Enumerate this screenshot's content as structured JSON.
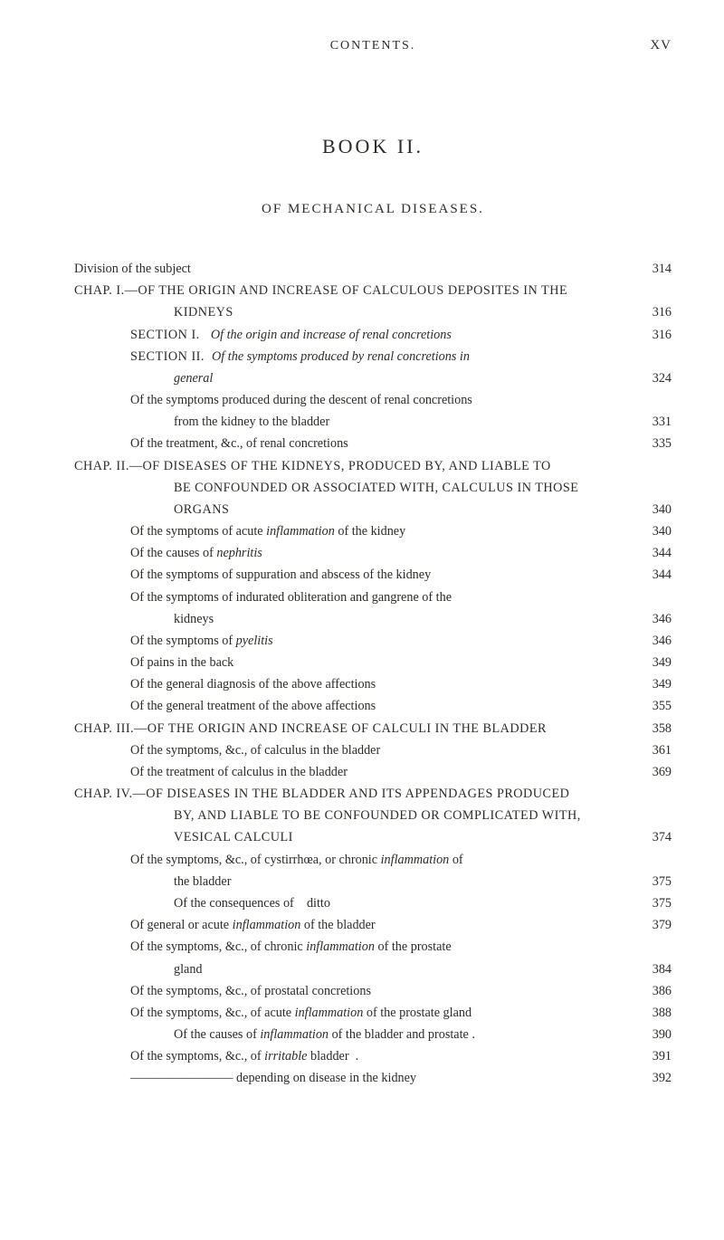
{
  "page": {
    "running_head": {
      "left": "",
      "center": "CONTENTS.",
      "right": "XV"
    },
    "book_title": "BOOK  II.",
    "subhead": "OF  MECHANICAL  DISEASES.",
    "page_font": {
      "family": "Times New Roman",
      "base_size_pt": 14.2,
      "color": "#2b2b28"
    },
    "background_color": "#ffffff"
  },
  "toc": {
    "items": [
      {
        "label_before": "Division of the subject",
        "label_after": "",
        "page": "314",
        "indent": 0
      },
      {
        "label_before": "CHAP. I.—OF THE ORIGIN AND INCREASE OF CALCULOUS DEPOSITES IN THE",
        "page": "",
        "indent": 0,
        "smallcaps": true,
        "hang": true
      },
      {
        "label_before": "KIDNEYS",
        "page": "316",
        "indent": 2,
        "smallcaps": true
      },
      {
        "label_before": "SECTION I.   ",
        "label_italic": "Of the origin and increase of renal concretions",
        "page": "316",
        "indent": 1,
        "smallcaps": true
      },
      {
        "label_before": "SECTION II.  ",
        "label_italic": "Of the symptoms produced by renal concretions in",
        "page": "",
        "indent": 1,
        "smallcaps": true
      },
      {
        "label_italic": "general",
        "page": "324",
        "indent": 2
      },
      {
        "label_before": "Of the symptoms produced during the descent of renal concretions",
        "page": "",
        "indent": 1
      },
      {
        "label_before": "from the kidney to the bladder",
        "page": "331",
        "indent": 2
      },
      {
        "label_before": "Of the treatment, &c., of renal concretions",
        "page": "335",
        "indent": 1
      },
      {
        "label_before": "CHAP. II.—OF DISEASES OF THE KIDNEYS, PRODUCED BY, AND LIABLE TO",
        "page": "",
        "indent": 0,
        "smallcaps": true,
        "hang": true
      },
      {
        "label_before": "BE CONFOUNDED OR ASSOCIATED WITH, CALCULUS IN THOSE",
        "page": "",
        "indent": 2,
        "smallcaps": true
      },
      {
        "label_before": "ORGANS",
        "page": "340",
        "indent": 2,
        "smallcaps": true
      },
      {
        "label_before": "Of the symptoms of acute ",
        "label_italic": "inflammation",
        "label_after": " of the kidney",
        "page": "340",
        "indent": 1
      },
      {
        "label_before": "Of the causes of ",
        "label_italic": "nephritis",
        "page": "344",
        "indent": 1
      },
      {
        "label_before": "Of the symptoms of suppuration and abscess of the kidney",
        "page": "344",
        "indent": 1
      },
      {
        "label_before": "Of the symptoms of indurated obliteration and gangrene of the",
        "page": "",
        "indent": 1
      },
      {
        "label_before": "kidneys",
        "page": "346",
        "indent": 2
      },
      {
        "label_before": "Of the symptoms of ",
        "label_italic": "pyelitis",
        "page": "346",
        "indent": 1
      },
      {
        "label_before": "Of pains in the back",
        "page": "349",
        "indent": 1
      },
      {
        "label_before": "Of the general diagnosis of the above affections",
        "page": "349",
        "indent": 1
      },
      {
        "label_before": "Of the general treatment of the above affections",
        "page": "355",
        "indent": 1
      },
      {
        "label_before": "CHAP. III.—OF THE ORIGIN AND INCREASE OF CALCULI IN THE BLADDER",
        "page": "358",
        "indent": 0,
        "smallcaps": true,
        "hang": true
      },
      {
        "label_before": "Of the symptoms, &c., of calculus in the bladder",
        "page": "361",
        "indent": 1
      },
      {
        "label_before": "Of the treatment of calculus in the bladder",
        "page": "369",
        "indent": 1
      },
      {
        "label_before": "CHAP. IV.—OF DISEASES IN THE BLADDER AND ITS APPENDAGES PRODUCED",
        "page": "",
        "indent": 0,
        "smallcaps": true,
        "hang": true
      },
      {
        "label_before": "BY, AND LIABLE TO BE CONFOUNDED OR COMPLICATED WITH,",
        "page": "",
        "indent": 2,
        "smallcaps": true
      },
      {
        "label_before": "VESICAL CALCULI",
        "page": "374",
        "indent": 2,
        "smallcaps": true
      },
      {
        "label_before": "Of the symptoms, &c., of cystirrhœa, or chronic ",
        "label_italic": "inflammation",
        "label_after": " of",
        "page": "",
        "indent": 1
      },
      {
        "label_before": "the bladder",
        "page": "375",
        "indent": 2
      },
      {
        "label_before": "Of the consequences of    ditto",
        "page": "375",
        "indent": 2
      },
      {
        "label_before": "Of general or acute ",
        "label_italic": "inflammation",
        "label_after": " of the bladder",
        "page": "379",
        "indent": 1
      },
      {
        "label_before": "Of the symptoms, &c., of chronic ",
        "label_italic": "inflammation",
        "label_after": " of the prostate",
        "page": "",
        "indent": 1
      },
      {
        "label_before": "gland",
        "page": "384",
        "indent": 2
      },
      {
        "label_before": "Of the symptoms, &c., of prostatal concretions",
        "page": "386",
        "indent": 1
      },
      {
        "label_before": "Of the symptoms, &c., of acute ",
        "label_italic": "inflammation",
        "label_after": " of the prostate gland",
        "page": "388",
        "indent": 1
      },
      {
        "label_before": "Of the causes of ",
        "label_italic": "inflammation",
        "label_after": " of the bladder and prostate .",
        "page": "390",
        "indent": 2
      },
      {
        "label_before": "Of the symptoms, &c., of ",
        "label_italic": "irritable",
        "label_after": " bladder  .",
        "page": "391",
        "indent": 1
      },
      {
        "label_before": "———————— depending on disease in the kidney",
        "page": "392",
        "indent": 1
      }
    ]
  }
}
